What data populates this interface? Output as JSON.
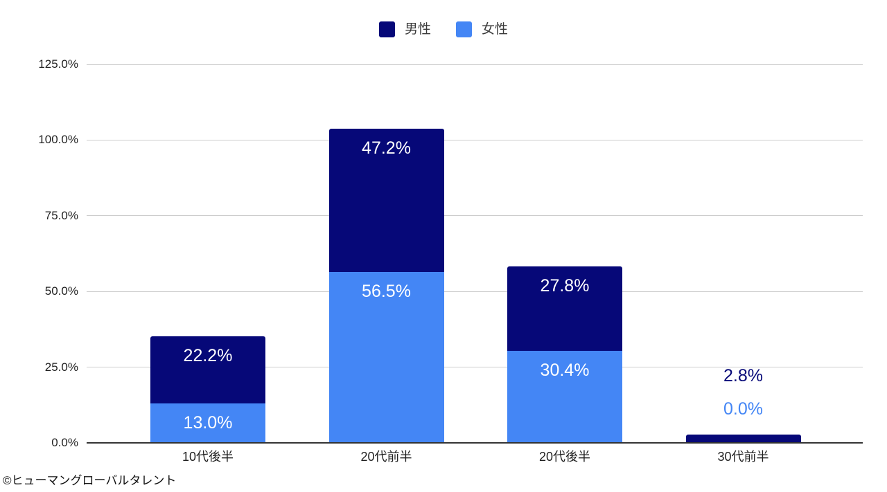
{
  "page": {
    "background": "#ffffff"
  },
  "chart_data": {
    "type": "bar",
    "stacked": true,
    "orientation": "vertical",
    "title": "",
    "xlabel": "",
    "ylabel": "",
    "categories": [
      "10代後半",
      "20代前半",
      "20代後半",
      "30代前半"
    ],
    "series": [
      {
        "name": "男性",
        "color": "#060878",
        "values": [
          22.2,
          47.2,
          27.8,
          2.8
        ],
        "labels": [
          "22.2%",
          "47.2%",
          "27.8%",
          "2.8%"
        ]
      },
      {
        "name": "女性",
        "color": "#4486f5",
        "values": [
          13.0,
          56.5,
          30.4,
          0.0
        ],
        "labels": [
          "13.0%",
          "56.5%",
          "30.4%",
          "0.0%"
        ]
      }
    ],
    "stack_bottom_to_top": [
      "女性",
      "男性"
    ],
    "ylim": [
      0,
      125
    ],
    "y_ticks": [
      {
        "value": 0,
        "label": "0.0%"
      },
      {
        "value": 25,
        "label": "25.0%"
      },
      {
        "value": 50,
        "label": "50.0%"
      },
      {
        "value": 75,
        "label": "75.0%"
      },
      {
        "value": 100,
        "label": "100.0%"
      },
      {
        "value": 125,
        "label": "125.0%"
      }
    ],
    "grid": true,
    "legend_position": "top",
    "value_label_inside_color": "#ffffff",
    "colors": {
      "gridline": "#cccccc",
      "baseline": "#333333",
      "axis_text": "#1f1f1f",
      "legend_text": "#3a3a3a"
    }
  },
  "footer": {
    "copyright": "©ヒューマングローバルタレント"
  }
}
